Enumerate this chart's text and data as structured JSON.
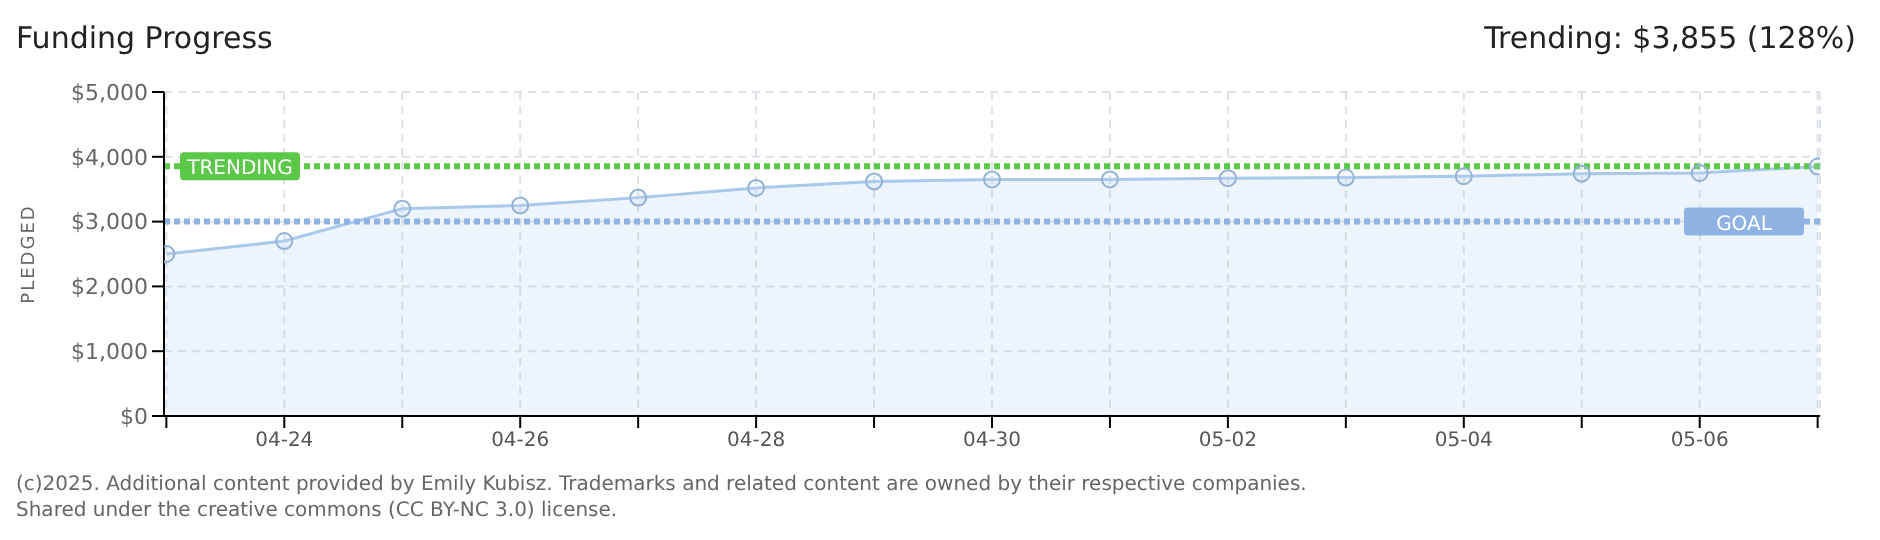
{
  "chart_data": {
    "type": "area",
    "title": "Funding Progress",
    "subtitle": "Trending: $3,855 (128%)",
    "ylabel": "PLEDGED",
    "categories": [
      null,
      "04-24",
      null,
      "04-26",
      null,
      "04-28",
      null,
      "04-30",
      null,
      "05-02",
      null,
      "05-04",
      null,
      "05-06",
      null
    ],
    "series": [
      {
        "color": "#a8c8ec",
        "values": [
          2500,
          2700,
          3200,
          3250,
          3370,
          3520,
          3620,
          3650,
          3650,
          3670,
          3680,
          3700,
          3740,
          3750,
          3850
        ]
      }
    ],
    "ylim": [
      0,
      5000
    ],
    "yticks": [
      {
        "value": 0,
        "label": "$0"
      },
      {
        "value": 1000,
        "label": "$1,000"
      },
      {
        "value": 2000,
        "label": "$2,000"
      },
      {
        "value": 3000,
        "label": "$3,000"
      },
      {
        "value": 4000,
        "label": "$4,000"
      },
      {
        "value": 5000,
        "label": "$5,000"
      }
    ],
    "ref_lines": [
      {
        "axis": "y",
        "value": 3855,
        "label": "TRENDING",
        "color": "#5cc84a",
        "line_style": "dotted"
      },
      {
        "axis": "y",
        "value": 3000,
        "label": "GOAL",
        "color": "#8fb4e3",
        "line_style": "dotted"
      }
    ],
    "grid": true,
    "legend": false,
    "marker": "circle",
    "annotations": [
      "(c)2025. Additional content provided by Emily Kubisz. Trademarks and related content are owned by their respective companies.",
      "Shared under the creative commons (CC BY-NC 3.0) license."
    ]
  }
}
